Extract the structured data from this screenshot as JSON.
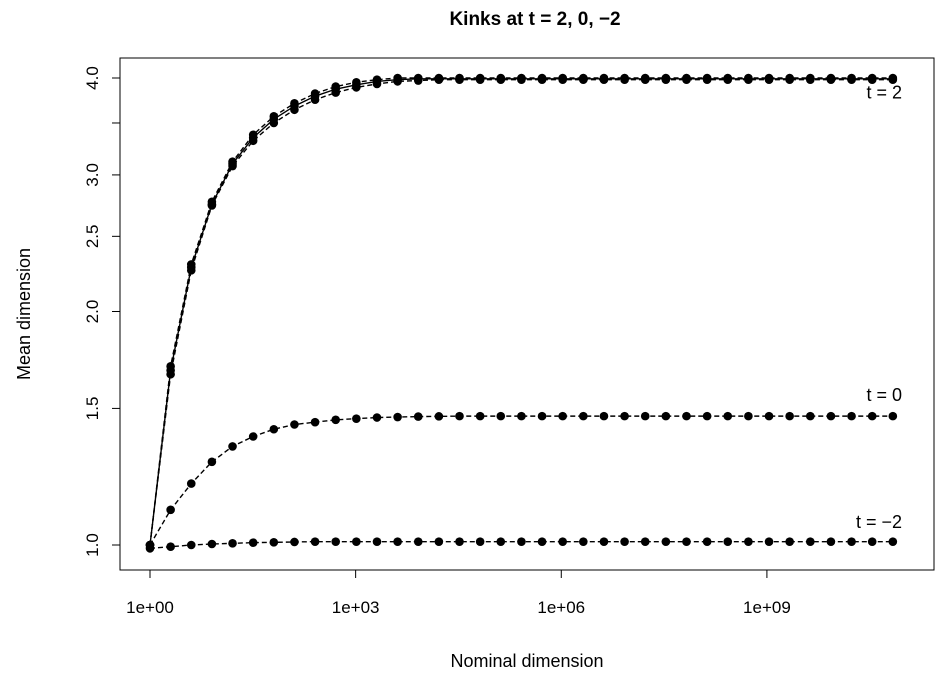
{
  "chart_data": {
    "type": "line",
    "title": "Kinks at t = 2, 0, −2",
    "xlabel": "Nominal dimension",
    "ylabel": "Mean dimension",
    "x_scale": "log10",
    "y_scale": "log",
    "xlim": [
      1,
      100000000000.0
    ],
    "ylim": [
      1,
      4
    ],
    "x_ticks": [
      {
        "value": 1,
        "label": "1e+00"
      },
      {
        "value": 1000,
        "label": "1e+03"
      },
      {
        "value": 1000000,
        "label": "1e+06"
      },
      {
        "value": 1000000000,
        "label": "1e+09"
      }
    ],
    "y_ticks": [
      {
        "value": 1.0,
        "label": "1.0"
      },
      {
        "value": 1.5,
        "label": "1.5"
      },
      {
        "value": 2.0,
        "label": "2.0"
      },
      {
        "value": 2.5,
        "label": "2.5"
      },
      {
        "value": 3.0,
        "label": "3.0"
      },
      {
        "value": 3.5,
        "label": ""
      },
      {
        "value": 4.0,
        "label": "4.0"
      }
    ],
    "grid": false,
    "legend": "none",
    "annotations": [
      {
        "text": "t = 2",
        "y": 3.83
      },
      {
        "text": "t = 0",
        "y": 1.56
      },
      {
        "text": "t = −2",
        "y": 1.07
      }
    ],
    "x": [
      1,
      2,
      4,
      8,
      16,
      32,
      64,
      128,
      256,
      512,
      1024,
      2048,
      4096,
      8192,
      16384,
      32768,
      65536,
      131072,
      262144,
      524288,
      1048576,
      2097152,
      4194304,
      8388608,
      16777216,
      33554432,
      67108864,
      134217728,
      268435456,
      536870912,
      1073741824,
      2147483648,
      4294967296,
      8589934592,
      17179869184,
      34359738368,
      68719476736
    ],
    "series": [
      {
        "group": "t = 2",
        "line": "dashed",
        "values": [
          1.0,
          1.66,
          2.26,
          2.74,
          3.08,
          3.32,
          3.5,
          3.64,
          3.75,
          3.83,
          3.89,
          3.93,
          3.96,
          3.97,
          3.98,
          3.98,
          3.98,
          3.98,
          3.98,
          3.98,
          3.98,
          3.98,
          3.98,
          3.98,
          3.98,
          3.98,
          3.98,
          3.98,
          3.98,
          3.98,
          3.98,
          3.98,
          3.98,
          3.98,
          3.98,
          3.98,
          3.98
        ]
      },
      {
        "group": "t = 2",
        "line": "solid",
        "values": [
          1.0,
          1.68,
          2.28,
          2.75,
          3.1,
          3.35,
          3.54,
          3.68,
          3.79,
          3.87,
          3.92,
          3.96,
          3.98,
          3.99,
          3.99,
          3.99,
          3.99,
          3.99,
          3.99,
          3.99,
          3.99,
          3.99,
          3.99,
          3.99,
          3.99,
          3.99,
          3.99,
          3.99,
          3.99,
          3.99,
          3.99,
          3.99,
          3.99,
          3.99,
          3.99,
          3.99,
          3.99
        ]
      },
      {
        "group": "t = 2",
        "line": "dashed",
        "values": [
          1.0,
          1.7,
          2.3,
          2.77,
          3.12,
          3.38,
          3.57,
          3.71,
          3.82,
          3.9,
          3.95,
          3.98,
          4.0,
          4.0,
          4.0,
          4.0,
          4.0,
          4.0,
          4.0,
          4.0,
          4.0,
          4.0,
          4.0,
          4.0,
          4.0,
          4.0,
          4.0,
          4.0,
          4.0,
          4.0,
          4.0,
          4.0,
          4.0,
          4.0,
          4.0,
          4.0,
          4.0
        ]
      },
      {
        "group": "t = 0",
        "line": "dashed",
        "values": [
          1.0,
          1.11,
          1.2,
          1.28,
          1.34,
          1.38,
          1.41,
          1.43,
          1.44,
          1.45,
          1.455,
          1.46,
          1.462,
          1.464,
          1.465,
          1.466,
          1.466,
          1.466,
          1.466,
          1.466,
          1.466,
          1.466,
          1.466,
          1.466,
          1.466,
          1.466,
          1.466,
          1.466,
          1.466,
          1.466,
          1.466,
          1.466,
          1.466,
          1.466,
          1.466,
          1.466,
          1.466
        ]
      },
      {
        "group": "t = −2",
        "line": "dashed",
        "values": [
          0.99,
          0.995,
          1.0,
          1.003,
          1.005,
          1.007,
          1.008,
          1.009,
          1.01,
          1.01,
          1.01,
          1.01,
          1.01,
          1.01,
          1.01,
          1.01,
          1.01,
          1.01,
          1.01,
          1.01,
          1.01,
          1.01,
          1.01,
          1.01,
          1.01,
          1.01,
          1.01,
          1.01,
          1.01,
          1.01,
          1.01,
          1.01,
          1.01,
          1.01,
          1.01,
          1.01,
          1.01
        ]
      }
    ]
  }
}
